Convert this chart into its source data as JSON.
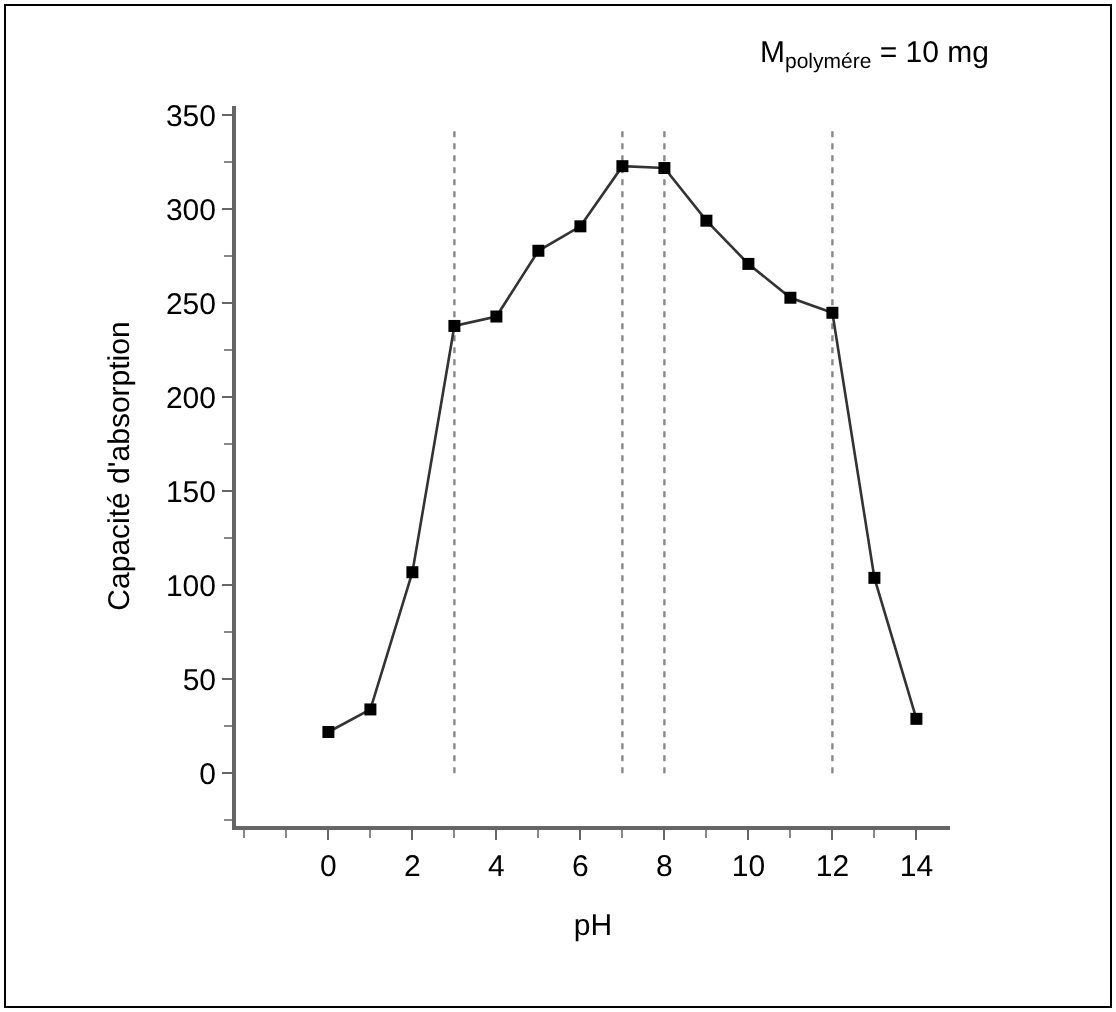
{
  "chart_data": {
    "type": "line",
    "xlabel": "pH",
    "ylabel": "Capacité d'absorption",
    "x": [
      0,
      1,
      2,
      3,
      4,
      5,
      6,
      7,
      8,
      9,
      10,
      11,
      12,
      13,
      14
    ],
    "series": [
      {
        "color": "#333333",
        "values": [
          22,
          34,
          107,
          238,
          243,
          278,
          291,
          323,
          322,
          294,
          271,
          253,
          245,
          104,
          29
        ]
      }
    ],
    "xlim": [
      -2.2,
      14.8
    ],
    "xticks": [
      0,
      2,
      4,
      6,
      8,
      10,
      12,
      14
    ],
    "ylim": [
      -28,
      355
    ],
    "yticks": [
      0,
      50,
      100,
      150,
      200,
      250,
      300,
      350
    ],
    "marker": "square",
    "line_style": "solid",
    "ref_lines": [
      {
        "axis": "x",
        "value": 3,
        "line_style": "dotted",
        "color": "#888888"
      },
      {
        "axis": "x",
        "value": 7,
        "line_style": "dotted",
        "color": "#888888"
      },
      {
        "axis": "x",
        "value": 8,
        "line_style": "dotted",
        "color": "#888888"
      },
      {
        "axis": "x",
        "value": 12,
        "line_style": "dotted",
        "color": "#888888"
      }
    ],
    "annotations": [
      "M$_{polymére}$ = 10 mg"
    ]
  }
}
